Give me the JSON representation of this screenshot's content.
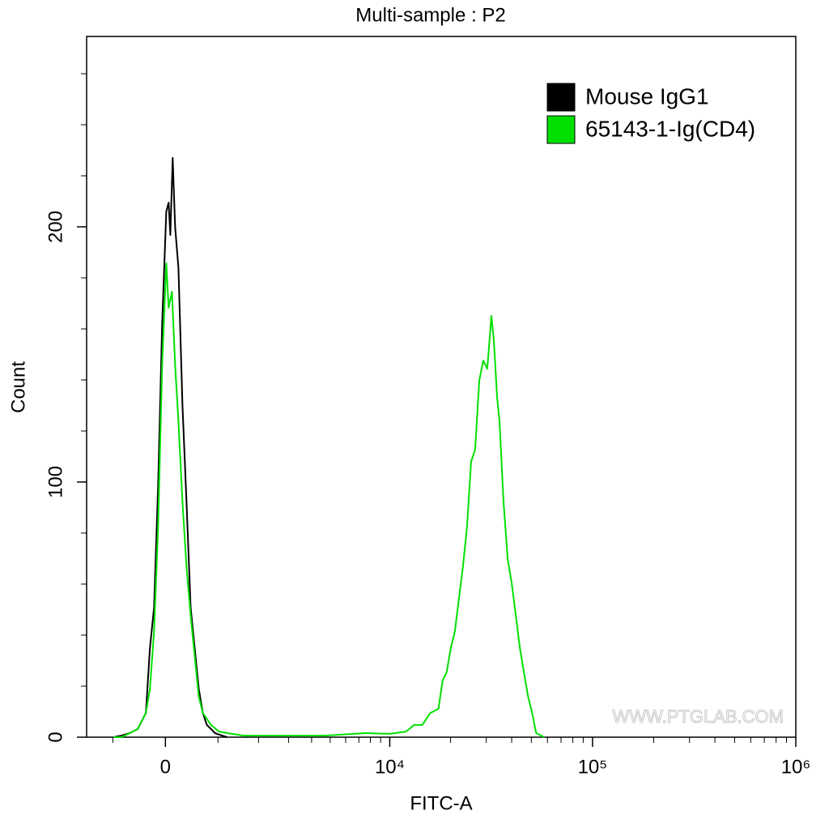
{
  "chart_data": {
    "type": "line",
    "title": "Multi-sample : P2",
    "x_label": "FITC-A",
    "y_label": "Count",
    "watermark": "WWW.PTGLAB.COM",
    "x_scale": "biexponential",
    "xlim": [
      -1610,
      1000000
    ],
    "xticks": [
      0,
      {
        "value": 10000,
        "label": "10⁴"
      },
      {
        "value": 100000,
        "label": "10⁵"
      },
      {
        "value": 1000000,
        "label": "10⁶"
      }
    ],
    "xminorticks": [
      -1000,
      1000,
      2000,
      3000,
      4000,
      5000,
      6000,
      7000,
      8000,
      9000,
      20000,
      30000,
      40000,
      50000,
      60000,
      70000,
      80000,
      90000,
      200000,
      300000,
      400000,
      500000,
      600000,
      700000,
      800000,
      900000
    ],
    "ylim": [
      0,
      274.6
    ],
    "yticks": [
      0,
      100,
      200
    ],
    "yminorticks": [
      20,
      40,
      60,
      80,
      120,
      140,
      160,
      180,
      220,
      240,
      260
    ],
    "legend": "top-right",
    "series": [
      {
        "name": "Mouse IgG1",
        "color": "#000000",
        "x": [
          -988,
          -821,
          -660,
          -504,
          -353,
          -279,
          -205,
          -131,
          -58,
          15,
          58,
          88,
          131,
          175,
          234,
          308,
          383,
          459,
          535,
          613,
          692,
          772,
          854,
          938,
          1023,
          1202
        ],
        "values": [
          0,
          0.6,
          1.6,
          3.2,
          9.5,
          34.9,
          50.8,
          98.4,
          161.9,
          206,
          209.5,
          196.8,
          227,
          200,
          184,
          130,
          92,
          50.8,
          34.9,
          19,
          9.5,
          4.8,
          3.2,
          1.6,
          1,
          0
        ]
      },
      {
        "name": "65143-1-Ig(CD4)",
        "color": "#00e000",
        "x": [
          -988,
          -821,
          -660,
          -504,
          -353,
          -279,
          -205,
          -131,
          -58,
          15,
          58,
          117,
          175,
          234,
          308,
          383,
          459,
          535,
          613,
          692,
          854,
          1023,
          1202,
          1595,
          2839,
          4680,
          7551,
          10001,
          12031,
          13220,
          14500,
          15900,
          17430,
          18270,
          19130,
          20050,
          20990,
          21980,
          23020,
          24110,
          25250,
          26440,
          27690,
          28990,
          30350,
          31790,
          32680,
          33900,
          34860,
          36500,
          38240,
          40040,
          41940,
          43920,
          46000,
          48170,
          50430,
          52810,
          57890
        ],
        "values": [
          0,
          0,
          1.6,
          3.2,
          9.5,
          19,
          41.3,
          82.5,
          146,
          185.7,
          168.3,
          174.6,
          146,
          123.8,
          92.1,
          66.7,
          47.6,
          31.7,
          15.9,
          9.5,
          4.8,
          2.2,
          1.6,
          0.6,
          0.6,
          0.6,
          1.6,
          1.3,
          2.2,
          4.8,
          4.8,
          9.5,
          11.1,
          22.2,
          25.4,
          34.9,
          41.3,
          54,
          66.7,
          82.5,
          107.9,
          112.7,
          139.7,
          147.6,
          144.4,
          165.1,
          155.6,
          133.3,
          123.8,
          92.1,
          69.8,
          60.3,
          47.6,
          34.9,
          25.4,
          15.9,
          9.5,
          1.6,
          0
        ]
      }
    ]
  }
}
